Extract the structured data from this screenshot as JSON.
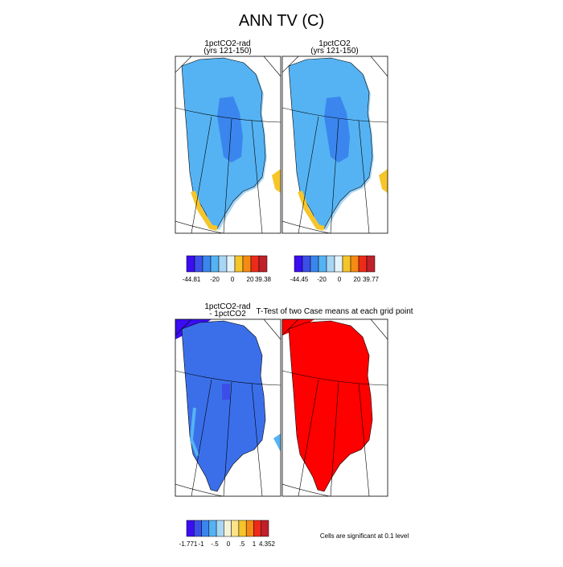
{
  "title": "ANN TV (C)",
  "panels": [
    {
      "title": [
        "1pctCO2-rad",
        "(yrs 121-150)"
      ]
    },
    {
      "title": [
        "1pctCO2",
        "(yrs 121-150)"
      ]
    },
    {
      "title": [
        "1pctCO2-rad",
        "- 1pctCO2"
      ]
    },
    {
      "title": [
        "T-Test of two Case means at each grid point"
      ]
    }
  ],
  "colorbars": [
    {
      "colors": [
        "#3a0df2",
        "#3b4fe8",
        "#3a86ee",
        "#55b3f3",
        "#a8d6f4",
        "#e6f3fa",
        "#f5c52a",
        "#f58a14",
        "#ee2a1a",
        "#c0202a"
      ],
      "labels": [
        "-44.81",
        "-20",
        "0",
        "20",
        "39.38"
      ]
    },
    {
      "colors": [
        "#3a0df2",
        "#3b4fe8",
        "#3a86ee",
        "#55b3f3",
        "#a8d6f4",
        "#e6f3fa",
        "#f5c52a",
        "#f58a14",
        "#ee2a1a",
        "#c0202a"
      ],
      "labels": [
        "-44.45",
        "-20",
        "0",
        "20",
        "39.77"
      ]
    },
    {
      "colors": [
        "#3a0df2",
        "#3b4fe8",
        "#3a86ee",
        "#55b3f3",
        "#a8d6f4",
        "#f3f3d8",
        "#fde28a",
        "#f5c52a",
        "#f58a14",
        "#ee2a1a",
        "#c0202a"
      ],
      "labels": [
        "-1.771",
        "-1",
        "-.5",
        "0",
        ".5",
        "1",
        "4.352"
      ]
    }
  ],
  "note": "Cells are significant at 0.1 level"
}
